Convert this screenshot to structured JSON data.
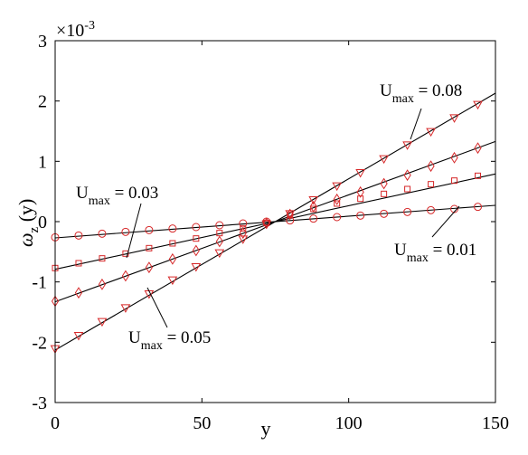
{
  "chart_data": {
    "type": "line",
    "title": "",
    "xlabel": "y",
    "ylabel_main": "ω",
    "ylabel_sub": "z",
    "ylabel_tail": " (y)",
    "scale_note_base": "×10",
    "scale_note_exp": "-3",
    "xlim": [
      0,
      150
    ],
    "ylim": [
      -3,
      3
    ],
    "xticks": [
      0,
      50,
      100,
      150
    ],
    "yticks": [
      -3,
      -2,
      -1,
      0,
      1,
      2,
      3
    ],
    "grid": false,
    "line_color": "#000000",
    "marker_color": "#d62728",
    "series": [
      {
        "name": "Umax = 0.01",
        "marker": "circle",
        "line": {
          "x": [
            0,
            150
          ],
          "y": [
            -0.27,
            0.27
          ]
        },
        "points": {
          "x": [
            0,
            8,
            16,
            24,
            32,
            40,
            48,
            56,
            64,
            72,
            80,
            88,
            96,
            104,
            112,
            120,
            128,
            136,
            144
          ],
          "y": [
            -0.26,
            -0.23,
            -0.2,
            -0.17,
            -0.14,
            -0.115,
            -0.09,
            -0.06,
            -0.03,
            0.0,
            0.02,
            0.05,
            0.075,
            0.1,
            0.13,
            0.16,
            0.19,
            0.21,
            0.245
          ]
        }
      },
      {
        "name": "Umax = 0.03",
        "marker": "square",
        "line": {
          "x": [
            0,
            150
          ],
          "y": [
            -0.79,
            0.79
          ]
        },
        "points": {
          "x": [
            0,
            8,
            16,
            24,
            32,
            40,
            48,
            56,
            64,
            72,
            80,
            88,
            96,
            104,
            112,
            120,
            128,
            136,
            144
          ],
          "y": [
            -0.77,
            -0.69,
            -0.61,
            -0.53,
            -0.44,
            -0.36,
            -0.28,
            -0.19,
            -0.11,
            -0.02,
            0.11,
            0.21,
            0.3,
            0.38,
            0.46,
            0.54,
            0.62,
            0.68,
            0.76
          ]
        }
      },
      {
        "name": "Umax = 0.05",
        "marker": "diamond",
        "line": {
          "x": [
            0,
            150
          ],
          "y": [
            -1.33,
            1.33
          ]
        },
        "points": {
          "x": [
            0,
            8,
            16,
            24,
            32,
            40,
            48,
            56,
            64,
            72,
            80,
            88,
            96,
            104,
            112,
            120,
            128,
            136,
            144
          ],
          "y": [
            -1.32,
            -1.18,
            -1.04,
            -0.9,
            -0.76,
            -0.62,
            -0.48,
            -0.33,
            -0.19,
            -0.03,
            0.12,
            0.25,
            0.37,
            0.49,
            0.63,
            0.77,
            0.92,
            1.06,
            1.22
          ]
        }
      },
      {
        "name": "Umax = 0.08",
        "marker": "triangle-down",
        "line": {
          "x": [
            0,
            150
          ],
          "y": [
            -2.13,
            2.13
          ]
        },
        "points": {
          "x": [
            0,
            8,
            16,
            24,
            32,
            40,
            48,
            56,
            64,
            72,
            80,
            88,
            96,
            104,
            112,
            120,
            128,
            136,
            144
          ],
          "y": [
            -2.11,
            -1.89,
            -1.66,
            -1.43,
            -1.2,
            -0.97,
            -0.75,
            -0.52,
            -0.29,
            -0.04,
            0.13,
            0.36,
            0.59,
            0.81,
            1.04,
            1.27,
            1.49,
            1.72,
            1.94
          ]
        }
      }
    ],
    "annotations": [
      {
        "base": "U",
        "sub": "max",
        "rest": " = 0.08"
      },
      {
        "base": "U",
        "sub": "max",
        "rest": " = 0.03"
      },
      {
        "base": "U",
        "sub": "max",
        "rest": " = 0.01"
      },
      {
        "base": "U",
        "sub": "max",
        "rest": " = 0.05"
      }
    ]
  }
}
